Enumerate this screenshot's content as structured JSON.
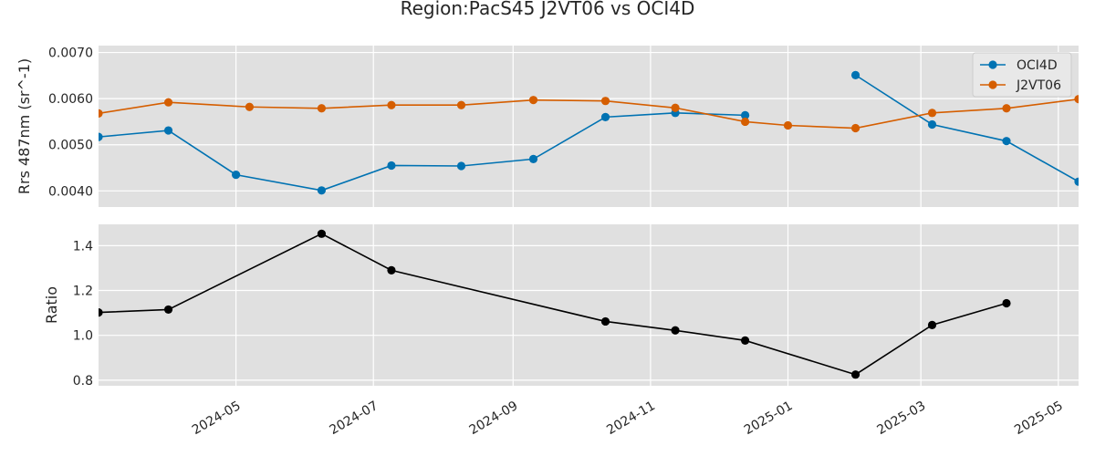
{
  "figure": {
    "title": "Region:PacS45 J2VT06 vs OCI4D"
  },
  "chart_data": [
    {
      "type": "line",
      "ylabel": "Rrs 487nm (sr^-1)",
      "xlim": [
        "2024-03-01",
        "2025-05-10"
      ],
      "ylim": [
        0.00365,
        0.00715
      ],
      "yticks": [
        0.004,
        0.005,
        0.006,
        0.007
      ],
      "ytick_labels": [
        "0.0040",
        "0.0050",
        "0.0060",
        "0.0070"
      ],
      "grid": true,
      "legend": "upper right",
      "series": [
        {
          "name": "OCI4D",
          "color": "#0072b2",
          "segments": [
            {
              "x": [
                "2024-03-01",
                "2024-04-01",
                "2024-05-01",
                "2024-06-08",
                "2024-07-09",
                "2024-08-09",
                "2024-09-10",
                "2024-10-12",
                "2024-11-12",
                "2024-12-13"
              ],
              "y": [
                0.00517,
                0.00531,
                0.00435,
                0.00401,
                0.00455,
                0.00454,
                0.00469,
                0.0056,
                0.00569,
                0.00564
              ]
            },
            {
              "x": [
                "2025-01-31",
                "2025-03-06",
                "2025-04-08",
                "2025-05-10"
              ],
              "y": [
                0.00651,
                0.00544,
                0.00508,
                0.0042
              ]
            }
          ]
        },
        {
          "name": "J2VT06",
          "color": "#d55e00",
          "segments": [
            {
              "x": [
                "2024-03-01",
                "2024-04-01",
                "2024-05-07",
                "2024-06-08",
                "2024-07-09",
                "2024-08-09",
                "2024-09-10",
                "2024-10-12",
                "2024-11-12",
                "2024-12-13",
                "2025-01-01",
                "2025-01-31",
                "2025-03-06",
                "2025-04-08",
                "2025-05-10"
              ],
              "y": [
                0.00568,
                0.00592,
                0.00582,
                0.00579,
                0.00586,
                0.00586,
                0.00597,
                0.00595,
                0.0058,
                0.0055,
                0.00542,
                0.00536,
                0.00569,
                0.00579,
                0.00599
              ]
            }
          ]
        }
      ]
    },
    {
      "type": "line",
      "ylabel": "Ratio",
      "xlim": [
        "2024-03-01",
        "2025-05-10"
      ],
      "ylim": [
        0.775,
        1.495
      ],
      "yticks": [
        0.8,
        1.0,
        1.2,
        1.4
      ],
      "ytick_labels": [
        "0.8",
        "1.0",
        "1.2",
        "1.4"
      ],
      "xticks": [
        "2024-05-01",
        "2024-07-01",
        "2024-09-01",
        "2024-11-01",
        "2025-01-01",
        "2025-03-01",
        "2025-05-01"
      ],
      "xtick_labels": [
        "2024-05",
        "2024-07",
        "2024-09",
        "2024-11",
        "2025-01",
        "2025-03",
        "2025-05"
      ],
      "grid": true,
      "series": [
        {
          "color": "#000000",
          "segments": [
            {
              "x": [
                "2024-03-01",
                "2024-04-01",
                "2024-06-08",
                "2024-07-09",
                "2024-10-12",
                "2024-11-12",
                "2024-12-13",
                "2025-01-31",
                "2025-03-06",
                "2025-04-08"
              ],
              "y": [
                1.102,
                1.115,
                1.453,
                1.29,
                1.062,
                1.022,
                0.977,
                0.825,
                1.046,
                1.143
              ]
            }
          ]
        }
      ]
    }
  ]
}
